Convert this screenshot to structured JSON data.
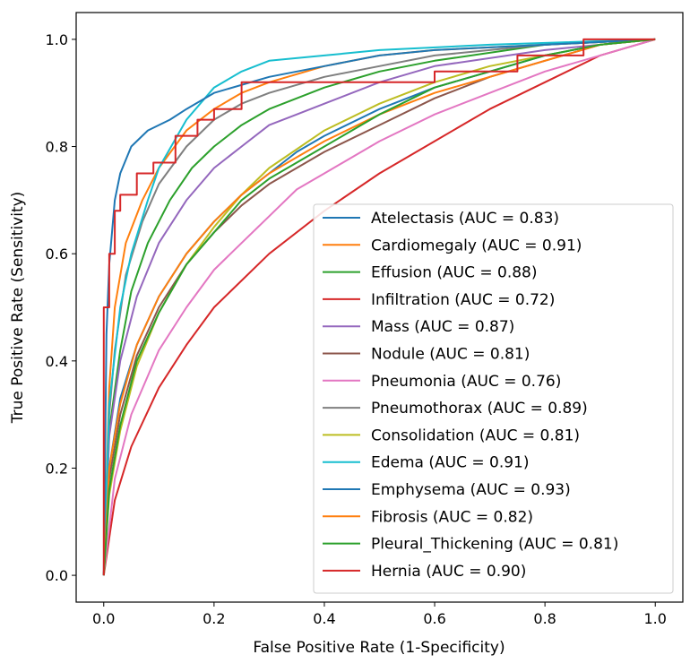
{
  "chart_data": {
    "type": "line",
    "title": "",
    "xlabel": "False Positive Rate (1-Specificity)",
    "ylabel": "True Positive Rate (Sensitivity)",
    "xlim": [
      -0.05,
      1.05
    ],
    "ylim": [
      -0.05,
      1.05
    ],
    "xticks": [
      "0.0",
      "0.2",
      "0.4",
      "0.6",
      "0.8",
      "1.0"
    ],
    "yticks": [
      "0.0",
      "0.2",
      "0.4",
      "0.6",
      "0.8",
      "1.0"
    ],
    "grid": false,
    "legend_position": "lower-right",
    "series": [
      {
        "name": "Atelectasis (AUC = 0.83)",
        "color": "#1f77b4",
        "points": [
          [
            0,
            0
          ],
          [
            0.01,
            0.2
          ],
          [
            0.03,
            0.33
          ],
          [
            0.06,
            0.43
          ],
          [
            0.1,
            0.52
          ],
          [
            0.15,
            0.6
          ],
          [
            0.2,
            0.66
          ],
          [
            0.25,
            0.71
          ],
          [
            0.3,
            0.75
          ],
          [
            0.35,
            0.79
          ],
          [
            0.4,
            0.82
          ],
          [
            0.5,
            0.87
          ],
          [
            0.6,
            0.91
          ],
          [
            0.7,
            0.94
          ],
          [
            0.8,
            0.97
          ],
          [
            0.9,
            0.99
          ],
          [
            1,
            1
          ]
        ]
      },
      {
        "name": "Cardiomegaly (AUC = 0.91)",
        "color": "#ff7f0e",
        "points": [
          [
            0,
            0
          ],
          [
            0.01,
            0.35
          ],
          [
            0.02,
            0.5
          ],
          [
            0.04,
            0.62
          ],
          [
            0.07,
            0.7
          ],
          [
            0.1,
            0.76
          ],
          [
            0.15,
            0.83
          ],
          [
            0.2,
            0.87
          ],
          [
            0.25,
            0.9
          ],
          [
            0.3,
            0.92
          ],
          [
            0.4,
            0.95
          ],
          [
            0.5,
            0.97
          ],
          [
            0.6,
            0.98
          ],
          [
            0.8,
            0.99
          ],
          [
            1,
            1
          ]
        ]
      },
      {
        "name": "Effusion (AUC = 0.88)",
        "color": "#2ca02c",
        "points": [
          [
            0,
            0
          ],
          [
            0.01,
            0.27
          ],
          [
            0.03,
            0.42
          ],
          [
            0.05,
            0.53
          ],
          [
            0.08,
            0.62
          ],
          [
            0.12,
            0.7
          ],
          [
            0.16,
            0.76
          ],
          [
            0.2,
            0.8
          ],
          [
            0.25,
            0.84
          ],
          [
            0.3,
            0.87
          ],
          [
            0.4,
            0.91
          ],
          [
            0.5,
            0.94
          ],
          [
            0.6,
            0.96
          ],
          [
            0.8,
            0.99
          ],
          [
            1,
            1
          ]
        ]
      },
      {
        "name": "Infiltration (AUC = 0.72)",
        "color": "#d62728",
        "points": [
          [
            0,
            0
          ],
          [
            0.02,
            0.14
          ],
          [
            0.05,
            0.24
          ],
          [
            0.1,
            0.35
          ],
          [
            0.15,
            0.43
          ],
          [
            0.2,
            0.5
          ],
          [
            0.3,
            0.6
          ],
          [
            0.4,
            0.68
          ],
          [
            0.5,
            0.75
          ],
          [
            0.6,
            0.81
          ],
          [
            0.7,
            0.87
          ],
          [
            0.8,
            0.92
          ],
          [
            0.9,
            0.97
          ],
          [
            1,
            1
          ]
        ]
      },
      {
        "name": "Mass (AUC = 0.87)",
        "color": "#9467bd",
        "points": [
          [
            0,
            0
          ],
          [
            0.01,
            0.26
          ],
          [
            0.03,
            0.4
          ],
          [
            0.06,
            0.52
          ],
          [
            0.1,
            0.62
          ],
          [
            0.15,
            0.7
          ],
          [
            0.2,
            0.76
          ],
          [
            0.25,
            0.8
          ],
          [
            0.3,
            0.84
          ],
          [
            0.35,
            0.86
          ],
          [
            0.4,
            0.88
          ],
          [
            0.5,
            0.92
          ],
          [
            0.6,
            0.95
          ],
          [
            0.8,
            0.98
          ],
          [
            1,
            1
          ]
        ]
      },
      {
        "name": "Nodule (AUC = 0.81)",
        "color": "#8c564b",
        "points": [
          [
            0,
            0
          ],
          [
            0.01,
            0.18
          ],
          [
            0.03,
            0.3
          ],
          [
            0.06,
            0.41
          ],
          [
            0.1,
            0.5
          ],
          [
            0.15,
            0.58
          ],
          [
            0.2,
            0.64
          ],
          [
            0.25,
            0.69
          ],
          [
            0.3,
            0.73
          ],
          [
            0.4,
            0.79
          ],
          [
            0.5,
            0.84
          ],
          [
            0.6,
            0.89
          ],
          [
            0.7,
            0.93
          ],
          [
            0.8,
            0.96
          ],
          [
            0.9,
            0.99
          ],
          [
            1,
            1
          ]
        ]
      },
      {
        "name": "Pneumonia (AUC = 0.76)",
        "color": "#e377c2",
        "points": [
          [
            0,
            0
          ],
          [
            0.02,
            0.18
          ],
          [
            0.05,
            0.3
          ],
          [
            0.1,
            0.42
          ],
          [
            0.15,
            0.5
          ],
          [
            0.2,
            0.57
          ],
          [
            0.25,
            0.62
          ],
          [
            0.3,
            0.67
          ],
          [
            0.35,
            0.72
          ],
          [
            0.4,
            0.75
          ],
          [
            0.5,
            0.81
          ],
          [
            0.6,
            0.86
          ],
          [
            0.7,
            0.9
          ],
          [
            0.8,
            0.94
          ],
          [
            0.9,
            0.97
          ],
          [
            1,
            1
          ]
        ]
      },
      {
        "name": "Pneumothorax (AUC = 0.89)",
        "color": "#7f7f7f",
        "points": [
          [
            0,
            0
          ],
          [
            0.01,
            0.3
          ],
          [
            0.02,
            0.42
          ],
          [
            0.04,
            0.56
          ],
          [
            0.07,
            0.66
          ],
          [
            0.1,
            0.73
          ],
          [
            0.15,
            0.8
          ],
          [
            0.2,
            0.85
          ],
          [
            0.25,
            0.88
          ],
          [
            0.3,
            0.9
          ],
          [
            0.4,
            0.93
          ],
          [
            0.5,
            0.95
          ],
          [
            0.6,
            0.97
          ],
          [
            0.8,
            0.99
          ],
          [
            1,
            1
          ]
        ]
      },
      {
        "name": "Consolidation (AUC = 0.81)",
        "color": "#bcbd22",
        "points": [
          [
            0,
            0
          ],
          [
            0.01,
            0.15
          ],
          [
            0.03,
            0.27
          ],
          [
            0.06,
            0.39
          ],
          [
            0.1,
            0.49
          ],
          [
            0.15,
            0.58
          ],
          [
            0.2,
            0.65
          ],
          [
            0.25,
            0.71
          ],
          [
            0.3,
            0.76
          ],
          [
            0.4,
            0.83
          ],
          [
            0.5,
            0.88
          ],
          [
            0.6,
            0.92
          ],
          [
            0.7,
            0.95
          ],
          [
            0.8,
            0.97
          ],
          [
            0.9,
            0.99
          ],
          [
            1,
            1
          ]
        ]
      },
      {
        "name": "Edema (AUC = 0.91)",
        "color": "#17becf",
        "points": [
          [
            0,
            0
          ],
          [
            0.01,
            0.32
          ],
          [
            0.03,
            0.5
          ],
          [
            0.05,
            0.6
          ],
          [
            0.08,
            0.7
          ],
          [
            0.1,
            0.76
          ],
          [
            0.15,
            0.85
          ],
          [
            0.2,
            0.91
          ],
          [
            0.25,
            0.94
          ],
          [
            0.3,
            0.96
          ],
          [
            0.4,
            0.97
          ],
          [
            0.5,
            0.98
          ],
          [
            0.7,
            0.99
          ],
          [
            1,
            1
          ]
        ]
      },
      {
        "name": "Emphysema (AUC = 0.93)",
        "color": "#1f77b4",
        "points": [
          [
            0,
            0
          ],
          [
            0.005,
            0.45
          ],
          [
            0.01,
            0.58
          ],
          [
            0.02,
            0.7
          ],
          [
            0.03,
            0.75
          ],
          [
            0.05,
            0.8
          ],
          [
            0.08,
            0.83
          ],
          [
            0.12,
            0.85
          ],
          [
            0.15,
            0.87
          ],
          [
            0.2,
            0.9
          ],
          [
            0.3,
            0.93
          ],
          [
            0.4,
            0.95
          ],
          [
            0.5,
            0.97
          ],
          [
            0.6,
            0.98
          ],
          [
            0.8,
            0.99
          ],
          [
            1,
            1
          ]
        ]
      },
      {
        "name": "Fibrosis (AUC = 0.82)",
        "color": "#ff7f0e",
        "points": [
          [
            0,
            0
          ],
          [
            0.01,
            0.2
          ],
          [
            0.03,
            0.32
          ],
          [
            0.06,
            0.43
          ],
          [
            0.1,
            0.52
          ],
          [
            0.15,
            0.6
          ],
          [
            0.2,
            0.66
          ],
          [
            0.25,
            0.71
          ],
          [
            0.3,
            0.75
          ],
          [
            0.35,
            0.78
          ],
          [
            0.4,
            0.81
          ],
          [
            0.5,
            0.86
          ],
          [
            0.6,
            0.9
          ],
          [
            0.7,
            0.93
          ],
          [
            0.8,
            0.96
          ],
          [
            0.9,
            0.99
          ],
          [
            1,
            1
          ]
        ]
      },
      {
        "name": "Pleural_Thickening (AUC = 0.81)",
        "color": "#2ca02c",
        "points": [
          [
            0,
            0
          ],
          [
            0.01,
            0.16
          ],
          [
            0.03,
            0.28
          ],
          [
            0.06,
            0.4
          ],
          [
            0.1,
            0.49
          ],
          [
            0.15,
            0.58
          ],
          [
            0.2,
            0.64
          ],
          [
            0.25,
            0.7
          ],
          [
            0.3,
            0.74
          ],
          [
            0.4,
            0.8
          ],
          [
            0.5,
            0.86
          ],
          [
            0.6,
            0.91
          ],
          [
            0.7,
            0.94
          ],
          [
            0.8,
            0.97
          ],
          [
            0.9,
            0.99
          ],
          [
            1,
            1
          ]
        ]
      },
      {
        "name": "Hernia (AUC = 0.90)",
        "color": "#d62728",
        "points": [
          [
            0,
            0
          ],
          [
            0,
            0.5
          ],
          [
            0.01,
            0.5
          ],
          [
            0.01,
            0.6
          ],
          [
            0.02,
            0.6
          ],
          [
            0.02,
            0.68
          ],
          [
            0.03,
            0.68
          ],
          [
            0.03,
            0.71
          ],
          [
            0.06,
            0.71
          ],
          [
            0.06,
            0.75
          ],
          [
            0.09,
            0.75
          ],
          [
            0.09,
            0.77
          ],
          [
            0.13,
            0.77
          ],
          [
            0.13,
            0.82
          ],
          [
            0.17,
            0.82
          ],
          [
            0.17,
            0.85
          ],
          [
            0.2,
            0.85
          ],
          [
            0.2,
            0.87
          ],
          [
            0.25,
            0.87
          ],
          [
            0.25,
            0.92
          ],
          [
            0.6,
            0.92
          ],
          [
            0.6,
            0.94
          ],
          [
            0.75,
            0.94
          ],
          [
            0.75,
            0.97
          ],
          [
            0.87,
            0.97
          ],
          [
            0.87,
            1
          ],
          [
            1,
            1
          ]
        ]
      }
    ]
  }
}
